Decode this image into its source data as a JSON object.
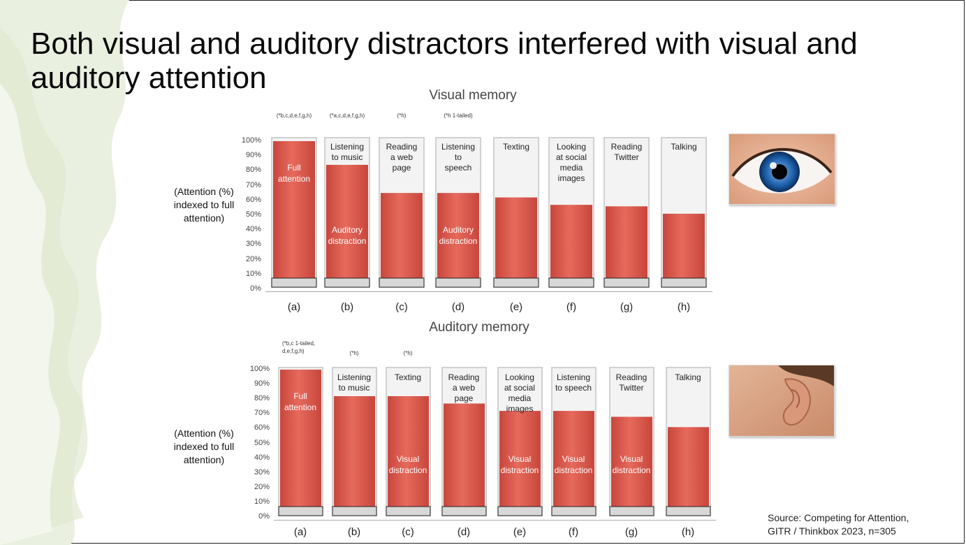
{
  "slide": {
    "title": "Both visual and auditory distractors interfered with visual and auditory attention",
    "source_line1": "Source: Competing for Attention,",
    "source_line2": "GITR / Thinkbox 2023, n=305"
  },
  "chart_data": [
    {
      "type": "bar",
      "title": "Visual memory",
      "ylabel": "(Attention (%)\nindexed to full\nattention)",
      "ylim": [
        0,
        100
      ],
      "yticks": [
        "0%",
        "10%",
        "20%",
        "30%",
        "40%",
        "50%",
        "60%",
        "70%",
        "80%",
        "90%",
        "100%"
      ],
      "categories": [
        "(a)",
        "(b)",
        "(c)",
        "(d)",
        "(e)",
        "(f)",
        "(g)",
        "(h)"
      ],
      "labels": [
        "Full attention",
        "Listening to music",
        "Reading a web page",
        "Listening to speech",
        "Texting",
        "Looking at social media images",
        "Reading Twitter",
        "Talking"
      ],
      "top_labels": [
        "",
        "Listening\nto music",
        "Reading\na web\npage",
        "Listening\nto\nspeech",
        "Texting",
        "Looking\nat social\nmedia\nimages",
        "Reading\nTwitter",
        "Talking"
      ],
      "inner_labels": [
        "Full\nattention",
        "Auditory\ndistraction",
        "",
        "Auditory\ndistraction",
        "",
        "",
        "",
        ""
      ],
      "significance": [
        "(*b,c,d,e,f,g,h)",
        "(*a,c,d,e,f,g,h)",
        "(*h)",
        "(*h 1-tailed)",
        "",
        "",
        "",
        ""
      ],
      "values": [
        100,
        84,
        65,
        65,
        62,
        57,
        56,
        51
      ],
      "icon": "eye-photo"
    },
    {
      "type": "bar",
      "title": "Auditory memory",
      "ylabel": "(Attention (%)\nindexed to full\nattention)",
      "ylim": [
        0,
        100
      ],
      "yticks": [
        "0%",
        "10%",
        "20%",
        "30%",
        "40%",
        "50%",
        "60%",
        "70%",
        "80%",
        "90%",
        "100%"
      ],
      "categories": [
        "(a)",
        "(b)",
        "(c)",
        "(d)",
        "(e)",
        "(f)",
        "(g)",
        "(h)"
      ],
      "labels": [
        "Full attention",
        "Listening to music",
        "Texting",
        "Reading a web page",
        "Looking at social media images",
        "Listening to speech",
        "Reading Twitter",
        "Talking"
      ],
      "top_labels": [
        "",
        "Listening\nto music",
        "Texting",
        "Reading\na web\npage",
        "Looking\nat social\nmedia\nimages",
        "Listening\nto speech",
        "Reading\nTwitter",
        "Talking"
      ],
      "inner_labels": [
        "Full\nattention",
        "",
        "Visual\ndistraction",
        "",
        "Visual\ndistraction",
        "Visual\ndistraction",
        "Visual\ndistraction",
        ""
      ],
      "significance": [
        "(*b,c 1-tailed,\nd,e,f,g,h)",
        "(*h)",
        "(*h)",
        "",
        "",
        "",
        "",
        ""
      ],
      "values": [
        100,
        82,
        82,
        77,
        72,
        72,
        68,
        61
      ],
      "icon": "ear-photo"
    }
  ],
  "colors": {
    "juice_light": "#e66a5c",
    "juice_dark": "#c8463c",
    "glass_edge": "#c4c4c4",
    "leaf_green": "#e4ecd8"
  }
}
